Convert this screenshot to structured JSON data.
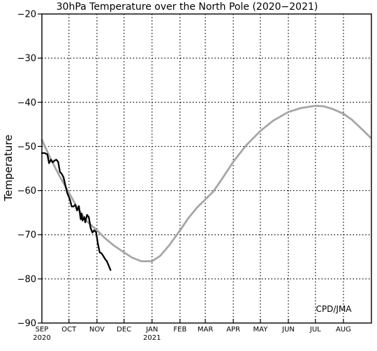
{
  "chart_data": {
    "type": "line",
    "title": "30hPa Temperature over the North Pole (2020−2021)",
    "xlabel": "",
    "ylabel": "Temperature",
    "ylim": [
      -90,
      -20
    ],
    "yticks": [
      -90,
      -80,
      -70,
      -60,
      -50,
      -40,
      -30,
      -20
    ],
    "xlim": [
      "2020-09-01",
      "2021-08-31"
    ],
    "month_ticks": [
      {
        "label": "SEP",
        "year": "2020",
        "date": "2020-09-01"
      },
      {
        "label": "OCT",
        "year": "",
        "date": "2020-10-01"
      },
      {
        "label": "NOV",
        "year": "",
        "date": "2020-11-01"
      },
      {
        "label": "DEC",
        "year": "",
        "date": "2020-12-01"
      },
      {
        "label": "JAN",
        "year": "2021",
        "date": "2021-01-01"
      },
      {
        "label": "FEB",
        "year": "",
        "date": "2021-02-01"
      },
      {
        "label": "MAR",
        "year": "",
        "date": "2021-03-01"
      },
      {
        "label": "APR",
        "year": "",
        "date": "2021-04-01"
      },
      {
        "label": "MAY",
        "year": "",
        "date": "2021-05-01"
      },
      {
        "label": "JUN",
        "year": "",
        "date": "2021-06-01"
      },
      {
        "label": "JUL",
        "year": "",
        "date": "2021-07-01"
      },
      {
        "label": "AUG",
        "year": "",
        "date": "2021-08-01"
      }
    ],
    "grid": true,
    "credit": "CPD/JMA",
    "series": [
      {
        "color": "#a6a6a6",
        "x": [
          "2020-09-01",
          "2020-09-10",
          "2020-09-20",
          "2020-10-01",
          "2020-10-10",
          "2020-10-20",
          "2020-11-01",
          "2020-11-10",
          "2020-11-20",
          "2020-12-01",
          "2020-12-10",
          "2020-12-20",
          "2021-01-01",
          "2021-01-10",
          "2021-01-20",
          "2021-02-01",
          "2021-02-10",
          "2021-02-20",
          "2021-03-01",
          "2021-03-10",
          "2021-03-20",
          "2021-04-01",
          "2021-04-15",
          "2021-05-01",
          "2021-05-15",
          "2021-06-01",
          "2021-06-15",
          "2021-07-01",
          "2021-07-10",
          "2021-07-20",
          "2021-08-01",
          "2021-08-10",
          "2021-08-20",
          "2021-08-31"
        ],
        "y": [
          -48.5,
          -52.5,
          -56.5,
          -60.5,
          -63.8,
          -66.8,
          -69.0,
          -70.8,
          -72.5,
          -74.0,
          -75.2,
          -76.0,
          -76.0,
          -74.8,
          -72.4,
          -69.0,
          -66.3,
          -63.8,
          -62.0,
          -60.2,
          -57.2,
          -53.5,
          -49.8,
          -46.5,
          -44.2,
          -42.2,
          -41.3,
          -40.8,
          -40.9,
          -41.5,
          -42.6,
          -43.9,
          -45.8,
          -48.0
        ]
      },
      {
        "color": "#000000",
        "x": [
          "2020-09-01",
          "2020-09-04",
          "2020-09-07",
          "2020-09-09",
          "2020-09-11",
          "2020-09-13",
          "2020-09-15",
          "2020-09-17",
          "2020-09-19",
          "2020-09-21",
          "2020-09-23",
          "2020-09-25",
          "2020-09-27",
          "2020-09-29",
          "2020-10-01",
          "2020-10-02",
          "2020-10-04",
          "2020-10-06",
          "2020-10-08",
          "2020-10-10",
          "2020-10-12",
          "2020-10-14",
          "2020-10-15",
          "2020-10-16",
          "2020-10-18",
          "2020-10-19",
          "2020-10-21",
          "2020-10-23",
          "2020-10-25",
          "2020-10-27",
          "2020-10-29",
          "2020-10-31",
          "2020-11-02",
          "2020-11-04",
          "2020-11-06",
          "2020-11-08",
          "2020-11-10",
          "2020-11-12",
          "2020-11-14",
          "2020-11-16"
        ],
        "y": [
          -51.5,
          -51.5,
          -51.8,
          -53.8,
          -53.0,
          -53.6,
          -53.2,
          -53.0,
          -53.5,
          -55.8,
          -56.2,
          -57.0,
          -58.8,
          -60.5,
          -61.5,
          -62.0,
          -63.6,
          -63.6,
          -63.2,
          -64.5,
          -63.5,
          -66.5,
          -65.2,
          -66.8,
          -66.0,
          -67.2,
          -65.5,
          -66.0,
          -68.5,
          -69.5,
          -69.0,
          -69.4,
          -72.0,
          -74.0,
          -74.2,
          -74.8,
          -75.5,
          -76.0,
          -77.0,
          -78.0
        ]
      }
    ]
  }
}
